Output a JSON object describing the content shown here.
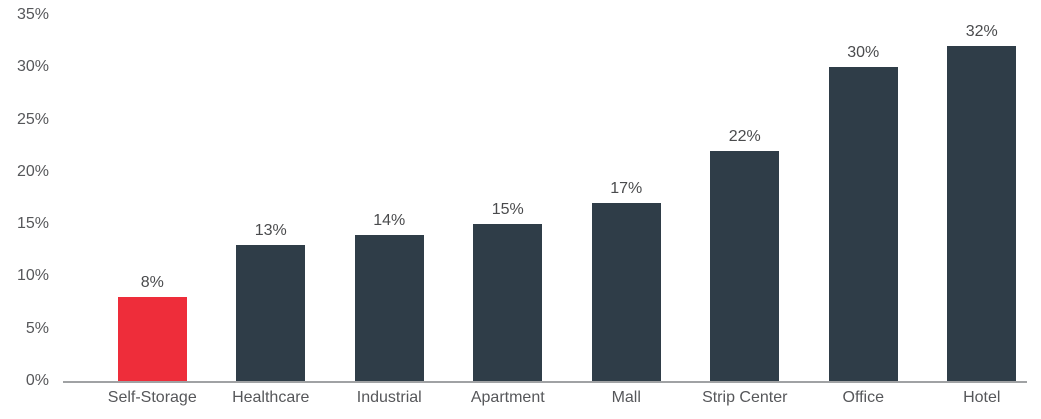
{
  "chart_data": {
    "type": "bar",
    "title": "",
    "xlabel": "",
    "ylabel": "",
    "categories": [
      "Self-Storage",
      "Healthcare",
      "Industrial",
      "Apartment",
      "Mall",
      "Strip Center",
      "Office",
      "Hotel"
    ],
    "values": [
      8,
      13,
      14,
      15,
      17,
      22,
      30,
      32
    ],
    "bar_labels": [
      "8%",
      "13%",
      "14%",
      "15%",
      "17%",
      "22%",
      "30%",
      "32%"
    ],
    "bar_colors": [
      "#EE2D3A",
      "#2F3D48",
      "#2F3D48",
      "#2F3D48",
      "#2F3D48",
      "#2F3D48",
      "#2F3D48",
      "#2F3D48"
    ],
    "highlight_category": "Self-Storage",
    "ylim": [
      0,
      35
    ],
    "yticks": [
      0,
      5,
      10,
      15,
      20,
      25,
      30,
      35
    ],
    "ytick_labels": [
      "0%",
      "5%",
      "10%",
      "15%",
      "20%",
      "25%",
      "30%",
      "35%"
    ],
    "grid": false,
    "legend": "none",
    "colors": {
      "highlight_bar": "#EE2D3A",
      "default_bar": "#2F3D48",
      "axis_line": "#A0A2A4",
      "tick_text": "#56575A",
      "value_text": "#4A4B4D",
      "background": "#FFFFFF"
    }
  }
}
